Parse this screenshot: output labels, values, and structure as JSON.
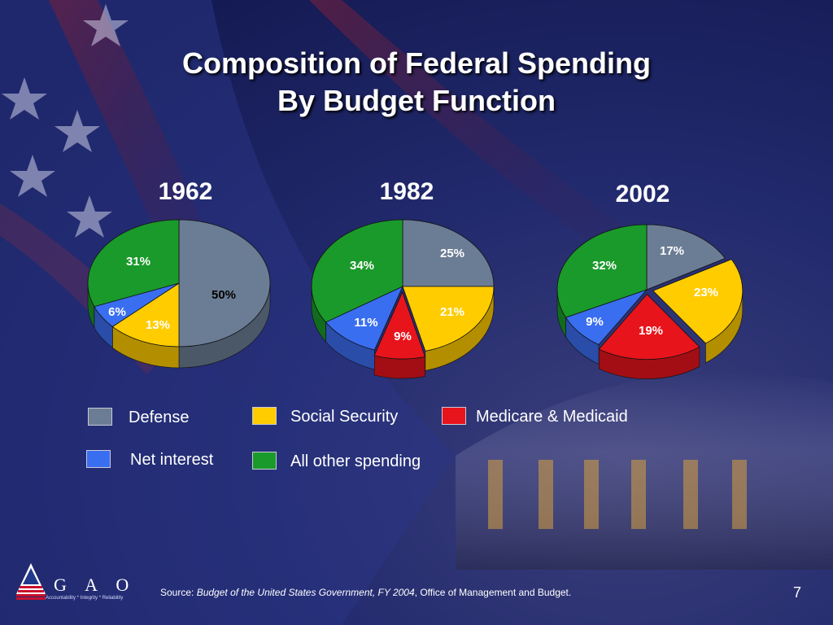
{
  "title_line1": "Composition of Federal Spending",
  "title_line2": "By Budget Function",
  "legend": [
    {
      "key": "defense",
      "label": "Defense",
      "color": "#6b7d94"
    },
    {
      "key": "social_security",
      "label": "Social Security",
      "color": "#ffcc00"
    },
    {
      "key": "medicare_medicaid",
      "label": "Medicare & Medicaid",
      "color": "#e8141c"
    },
    {
      "key": "net_interest",
      "label": "Net interest",
      "color": "#3a6ef0"
    },
    {
      "key": "other",
      "label": "All  other spending",
      "color": "#1a9a2a"
    }
  ],
  "colors": {
    "defense": "#6b7d94",
    "social_security": "#ffcc00",
    "medicare_medicaid": "#e8141c",
    "net_interest": "#3a6ef0",
    "other": "#1a9a2a",
    "background": "#1a1f5e"
  },
  "chart_data": [
    {
      "type": "pie",
      "title": "1962",
      "slices": [
        {
          "key": "defense",
          "label": "Defense",
          "value": 50,
          "text": "50%"
        },
        {
          "key": "social_security",
          "label": "Social Security",
          "value": 13,
          "text": "13%"
        },
        {
          "key": "net_interest",
          "label": "Net interest",
          "value": 6,
          "text": "6%"
        },
        {
          "key": "other",
          "label": "All  other spending",
          "value": 31,
          "text": "31%"
        }
      ]
    },
    {
      "type": "pie",
      "title": "1982",
      "slices": [
        {
          "key": "defense",
          "label": "Defense",
          "value": 25,
          "text": "25%"
        },
        {
          "key": "social_security",
          "label": "Social Security",
          "value": 21,
          "text": "21%"
        },
        {
          "key": "medicare_medicaid",
          "label": "Medicare & Medicaid",
          "value": 9,
          "text": "9%"
        },
        {
          "key": "net_interest",
          "label": "Net interest",
          "value": 11,
          "text": "11%"
        },
        {
          "key": "other",
          "label": "All  other spending",
          "value": 34,
          "text": "34%"
        }
      ]
    },
    {
      "type": "pie",
      "title": "2002",
      "slices": [
        {
          "key": "defense",
          "label": "Defense",
          "value": 17,
          "text": "17%"
        },
        {
          "key": "social_security",
          "label": "Social Security",
          "value": 23,
          "text": "23%"
        },
        {
          "key": "medicare_medicaid",
          "label": "Medicare & Medicaid",
          "value": 19,
          "text": "19%"
        },
        {
          "key": "net_interest",
          "label": "Net interest",
          "value": 9,
          "text": "9%"
        },
        {
          "key": "other",
          "label": "All  other spending",
          "value": 32,
          "text": "32%"
        }
      ]
    }
  ],
  "source": {
    "prefix": "Source: ",
    "title": "Budget of the United States Government, FY 2004",
    "suffix": ", Office of Management and Budget."
  },
  "page_number": "7",
  "logo": {
    "text": "G A O",
    "tagline": "Accountability * Integrity * Reliability"
  }
}
